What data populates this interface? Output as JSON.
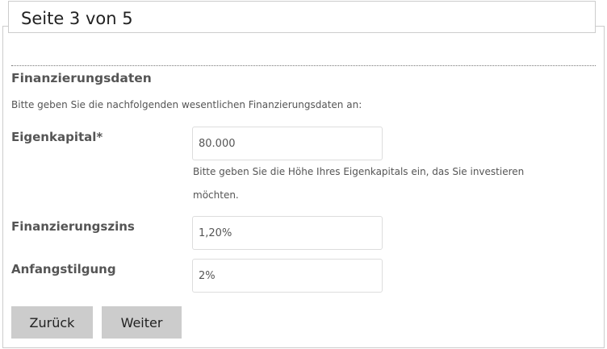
{
  "page_title": "Seite 3 von 5",
  "section": {
    "heading": "Finanzierungsdaten",
    "intro": "Bitte geben Sie die nachfolgenden wesentlichen Finanzierungsdaten an:"
  },
  "fields": {
    "eigenkapital": {
      "label": "Eigenkapital*",
      "value": "80.000",
      "help_line1": "Bitte geben Sie die Höhe Ihres Eigenkapitals ein, das Sie investieren",
      "help_line2": "möchten."
    },
    "zins": {
      "label": "Finanzierungszins",
      "value": "1,20%"
    },
    "tilgung": {
      "label": "Anfangstilgung",
      "value": "2%"
    }
  },
  "buttons": {
    "back": "Zurück",
    "next": "Weiter"
  }
}
